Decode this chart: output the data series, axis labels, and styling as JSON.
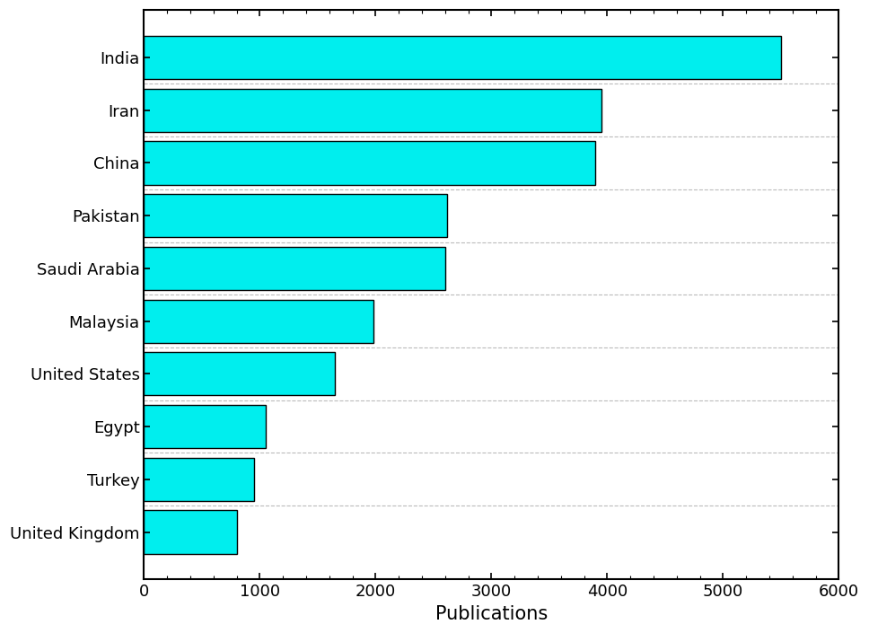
{
  "categories": [
    "United Kingdom",
    "Turkey",
    "Egypt",
    "United States",
    "Malaysia",
    "Saudi Arabia",
    "Pakistan",
    "China",
    "Iran",
    "India"
  ],
  "values": [
    800,
    950,
    1050,
    1650,
    1980,
    2600,
    2620,
    3900,
    3950,
    5500
  ],
  "bar_color": "#00EEEE",
  "bar_edgecolor": "#000000",
  "xlabel": "Publications",
  "xlim": [
    0,
    6000
  ],
  "xticks": [
    0,
    1000,
    2000,
    3000,
    4000,
    5000,
    6000
  ],
  "grid_linestyle": "--",
  "grid_color": "#bbbbbb",
  "background_color": "#ffffff",
  "xlabel_fontsize": 15,
  "tick_fontsize": 13,
  "bar_height": 0.82
}
